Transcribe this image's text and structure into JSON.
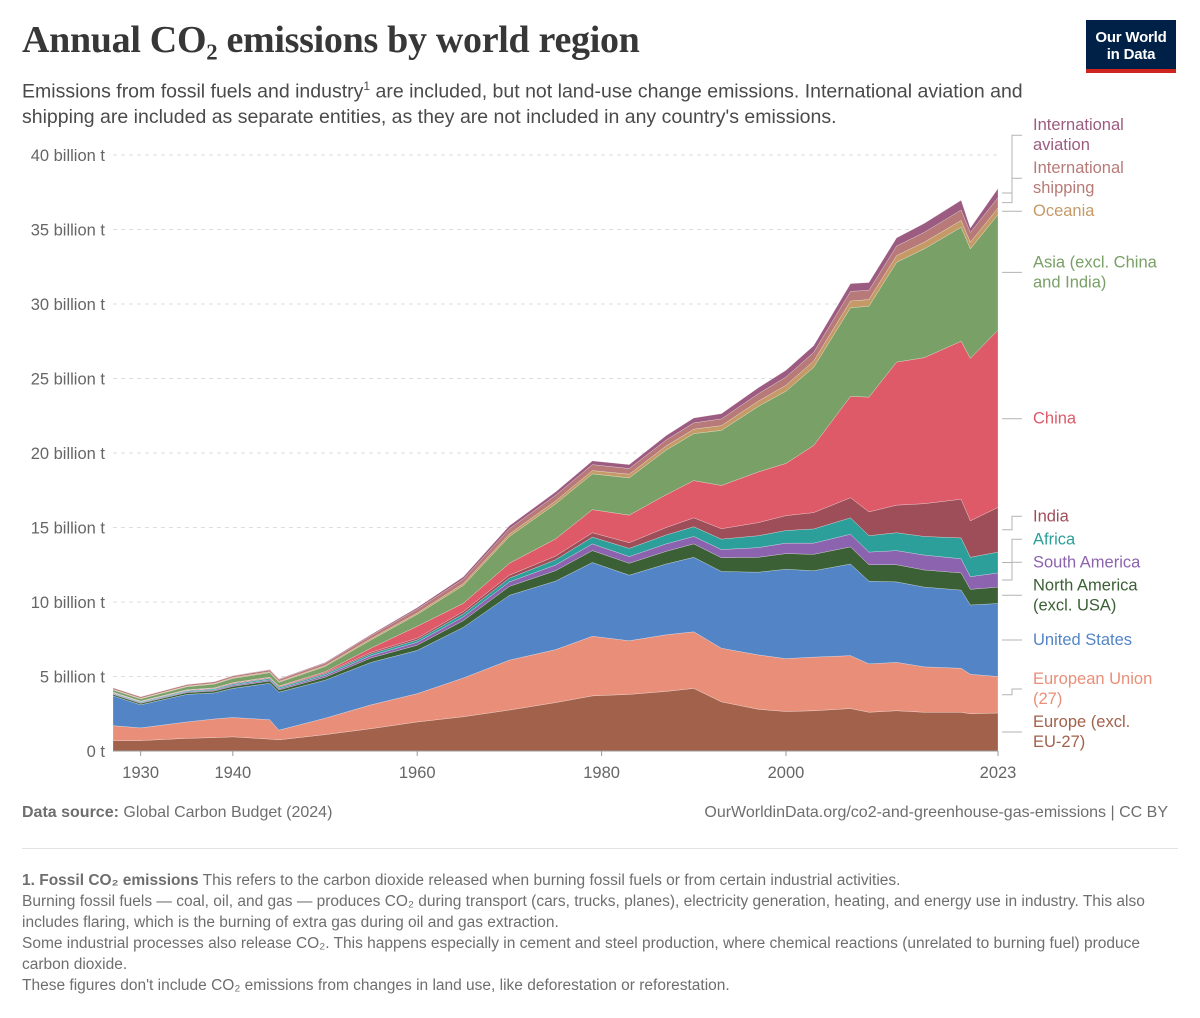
{
  "header": {
    "title": "Annual CO₂ emissions by world region",
    "subtitle_pre": "Emissions from fossil fuels and industry",
    "subtitle_sup": "1",
    "subtitle_post": " are included, but not land-use change emissions. International aviation and shipping are included as separate entities, as they are not included in any country's emissions.",
    "logo_line1": "Our World",
    "logo_line2": "in Data"
  },
  "footer": {
    "source_label": "Data source:",
    "source_text": " Global Carbon Budget (2024)",
    "url_text": "OurWorldinData.org/co2-and-greenhouse-gas-emissions | CC BY"
  },
  "notes": {
    "heading": "1. Fossil CO₂ emissions",
    "line1": " This refers to the carbon dioxide released when burning fossil fuels or from certain industrial activities.",
    "line2": "Burning fossil fuels — coal, oil, and gas — produces CO₂ during transport (cars, trucks, planes), electricity generation, heating, and energy use in industry. This also includes flaring, which is the burning of extra gas during oil and gas extraction.",
    "line3": "Some industrial processes also release CO₂. This happens especially in cement and steel production, where chemical reactions (unrelated to burning fuel) produce carbon dioxide.",
    "line4": "These figures don't include CO₂ emissions from changes in land use, like deforestation or reforestation."
  },
  "colors": {
    "europe": "#a2614a",
    "eu": "#e98f79",
    "usa": "#5385c6",
    "north_america": "#3b6035",
    "south_america": "#8c63ae",
    "africa": "#2c9f9a",
    "india": "#9e4e58",
    "china": "#de5a68",
    "asia": "#79a066",
    "oceania": "#c59a67",
    "shipping": "#b77a78",
    "aviation": "#9c5b80",
    "grid": "#dddddd",
    "axis_text": "#666666"
  },
  "chart_data": {
    "type": "area",
    "stacked": true,
    "title": "Annual CO₂ emissions by world region",
    "ylim": [
      0,
      40
    ],
    "yticks": [
      0,
      5,
      10,
      15,
      20,
      25,
      30,
      35,
      40
    ],
    "ytick_labels": [
      "0 t",
      "5 billion t",
      "10 billion t",
      "15 billion t",
      "20 billion t",
      "25 billion t",
      "30 billion t",
      "35 billion t",
      "40 billion t"
    ],
    "xlim": [
      1927,
      2023
    ],
    "xticks": [
      1930,
      1940,
      1960,
      1980,
      2000,
      2023
    ],
    "xtick_labels": [
      "1930",
      "1940",
      "1960",
      "1980",
      "2000",
      "2023"
    ],
    "x": [
      1927,
      1930,
      1935,
      1938,
      1940,
      1944,
      1945,
      1950,
      1955,
      1960,
      1965,
      1970,
      1975,
      1979,
      1983,
      1987,
      1990,
      1993,
      1997,
      2000,
      2003,
      2007,
      2009,
      2012,
      2015,
      2019,
      2020,
      2023
    ],
    "series": [
      {
        "name": "Europe (excl. EU-27)",
        "key": "europe",
        "label_lines": [
          "Europe (excl.",
          "EU-27)"
        ],
        "values": [
          0.7,
          0.7,
          0.85,
          0.9,
          0.95,
          0.8,
          0.75,
          1.1,
          1.5,
          1.95,
          2.3,
          2.75,
          3.25,
          3.7,
          3.8,
          4.0,
          4.2,
          3.3,
          2.8,
          2.65,
          2.7,
          2.85,
          2.6,
          2.7,
          2.6,
          2.6,
          2.5,
          2.55
        ]
      },
      {
        "name": "European Union (27)",
        "key": "eu",
        "label_lines": [
          "European Union",
          "(27)"
        ],
        "values": [
          1.0,
          0.85,
          1.1,
          1.25,
          1.3,
          1.3,
          0.65,
          1.1,
          1.6,
          1.9,
          2.6,
          3.35,
          3.55,
          4.0,
          3.6,
          3.8,
          3.8,
          3.6,
          3.65,
          3.55,
          3.6,
          3.55,
          3.25,
          3.25,
          3.05,
          2.95,
          2.65,
          2.45
        ]
      },
      {
        "name": "United States",
        "key": "usa",
        "label_lines": [
          "United States"
        ],
        "values": [
          2.0,
          1.55,
          1.85,
          1.75,
          1.95,
          2.45,
          2.55,
          2.55,
          2.85,
          2.9,
          3.4,
          4.35,
          4.6,
          4.95,
          4.4,
          4.75,
          5.0,
          5.15,
          5.55,
          6.0,
          5.8,
          6.15,
          5.55,
          5.4,
          5.35,
          5.25,
          4.65,
          4.9
        ]
      },
      {
        "name": "North America (excl. USA)",
        "key": "north_america",
        "label_lines": [
          "North America",
          "(excl. USA)"
        ],
        "values": [
          0.1,
          0.1,
          0.12,
          0.13,
          0.14,
          0.15,
          0.15,
          0.2,
          0.3,
          0.35,
          0.45,
          0.6,
          0.7,
          0.8,
          0.8,
          0.85,
          0.9,
          0.92,
          1.0,
          1.05,
          1.1,
          1.15,
          1.1,
          1.15,
          1.15,
          1.15,
          1.05,
          1.1
        ]
      },
      {
        "name": "South America",
        "key": "south_america",
        "label_lines": [
          "South America"
        ],
        "values": [
          0.05,
          0.05,
          0.06,
          0.07,
          0.08,
          0.08,
          0.08,
          0.12,
          0.15,
          0.2,
          0.25,
          0.3,
          0.38,
          0.45,
          0.45,
          0.5,
          0.5,
          0.55,
          0.65,
          0.7,
          0.75,
          0.85,
          0.85,
          0.95,
          1.0,
          0.95,
          0.85,
          0.95
        ]
      },
      {
        "name": "Africa",
        "key": "africa",
        "label_lines": [
          "Africa"
        ],
        "values": [
          0.05,
          0.05,
          0.06,
          0.07,
          0.08,
          0.09,
          0.09,
          0.1,
          0.13,
          0.15,
          0.2,
          0.25,
          0.35,
          0.45,
          0.55,
          0.6,
          0.65,
          0.7,
          0.8,
          0.85,
          0.95,
          1.1,
          1.1,
          1.2,
          1.25,
          1.4,
          1.3,
          1.4
        ]
      },
      {
        "name": "India",
        "key": "india",
        "label_lines": [
          "India"
        ],
        "values": [
          0.03,
          0.03,
          0.04,
          0.04,
          0.05,
          0.05,
          0.05,
          0.07,
          0.1,
          0.12,
          0.16,
          0.2,
          0.25,
          0.3,
          0.38,
          0.5,
          0.6,
          0.7,
          0.88,
          1.0,
          1.1,
          1.35,
          1.6,
          1.85,
          2.2,
          2.6,
          2.45,
          3.0
        ]
      },
      {
        "name": "China",
        "key": "china",
        "label_lines": [
          "China"
        ],
        "values": [
          0.02,
          0.02,
          0.03,
          0.03,
          0.04,
          0.04,
          0.04,
          0.08,
          0.28,
          0.8,
          0.55,
          0.8,
          1.15,
          1.55,
          1.85,
          2.2,
          2.5,
          2.9,
          3.4,
          3.5,
          4.5,
          6.8,
          7.7,
          9.6,
          9.8,
          10.6,
          10.9,
          11.9
        ]
      },
      {
        "name": "Asia (excl. China and India)",
        "key": "asia",
        "label_lines": [
          "Asia (excl. China",
          "and India)"
        ],
        "values": [
          0.15,
          0.15,
          0.2,
          0.25,
          0.28,
          0.3,
          0.25,
          0.35,
          0.55,
          0.8,
          1.2,
          1.8,
          2.35,
          2.4,
          2.5,
          3.0,
          3.15,
          3.7,
          4.4,
          4.85,
          5.25,
          5.95,
          6.1,
          6.7,
          7.3,
          7.65,
          7.35,
          7.75
        ]
      },
      {
        "name": "Oceania",
        "key": "oceania",
        "label_lines": [
          "Oceania"
        ],
        "values": [
          0.04,
          0.04,
          0.05,
          0.05,
          0.06,
          0.06,
          0.06,
          0.07,
          0.09,
          0.1,
          0.13,
          0.17,
          0.2,
          0.22,
          0.25,
          0.27,
          0.3,
          0.32,
          0.35,
          0.4,
          0.42,
          0.45,
          0.45,
          0.45,
          0.45,
          0.46,
          0.45,
          0.45
        ]
      },
      {
        "name": "International shipping",
        "key": "shipping",
        "label_lines": [
          "International",
          "shipping"
        ],
        "values": [
          0.1,
          0.1,
          0.1,
          0.11,
          0.11,
          0.12,
          0.13,
          0.15,
          0.2,
          0.25,
          0.3,
          0.35,
          0.38,
          0.4,
          0.38,
          0.4,
          0.42,
          0.45,
          0.5,
          0.55,
          0.58,
          0.65,
          0.62,
          0.64,
          0.66,
          0.7,
          0.65,
          0.7
        ]
      },
      {
        "name": "International aviation",
        "key": "aviation",
        "label_lines": [
          "International",
          "aviation"
        ],
        "values": [
          0.01,
          0.01,
          0.01,
          0.01,
          0.02,
          0.03,
          0.04,
          0.05,
          0.07,
          0.1,
          0.15,
          0.2,
          0.22,
          0.25,
          0.26,
          0.3,
          0.33,
          0.35,
          0.4,
          0.45,
          0.45,
          0.52,
          0.52,
          0.55,
          0.6,
          0.65,
          0.3,
          0.6
        ]
      }
    ]
  }
}
